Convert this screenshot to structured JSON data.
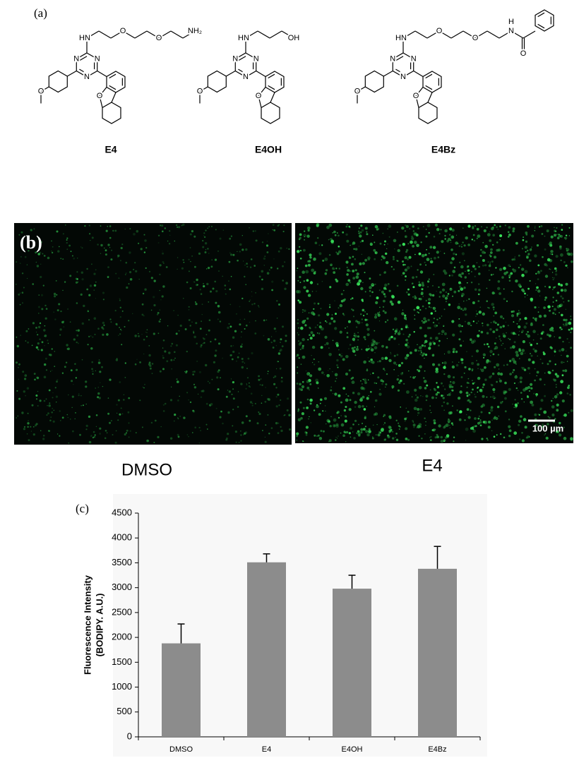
{
  "panel_labels": [
    "(a)",
    "(b)",
    "(c)"
  ],
  "structures": [
    {
      "name": "E4",
      "chain_labels": [
        "HN",
        "O",
        "O",
        "NH₂"
      ],
      "core_labels": [
        "N",
        "N",
        "N",
        "O",
        "O"
      ]
    },
    {
      "name": "E4OH",
      "chain_labels": [
        "HN",
        "OH"
      ],
      "core_labels": [
        "N",
        "N",
        "N",
        "O",
        "O"
      ]
    },
    {
      "name": "E4Bz",
      "chain_labels": [
        "HN",
        "O",
        "O",
        "H",
        "N",
        "O"
      ],
      "core_labels": [
        "N",
        "N",
        "N",
        "O",
        "O"
      ]
    }
  ],
  "micrographs": [
    {
      "caption": "DMSO"
    },
    {
      "caption": "E4",
      "scale_bar": "100 µm"
    }
  ],
  "chart_data": {
    "type": "bar",
    "y_label": [
      "Fluorescence Intensity",
      "(BODIPY. A.U.)"
    ],
    "categories": [
      "DMSO",
      "E4",
      "E4OH",
      "E4Bz"
    ],
    "values": [
      1880,
      3510,
      2980,
      3380
    ],
    "errors": [
      390,
      170,
      270,
      450
    ],
    "color": "#8c8c8c",
    "ylim": [
      0,
      4500
    ],
    "yticks": [
      0,
      500,
      1000,
      1500,
      2000,
      2500,
      3000,
      3500,
      4000,
      4500
    ]
  }
}
